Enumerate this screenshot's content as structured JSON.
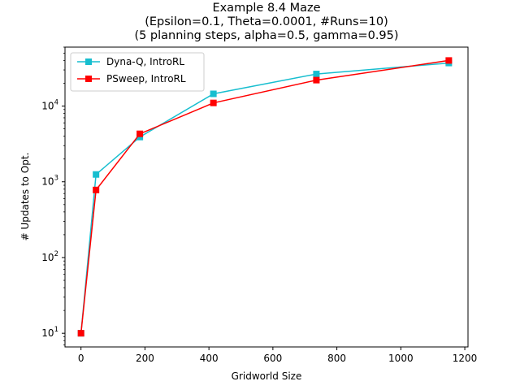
{
  "chart_data": {
    "type": "line",
    "title_lines": [
      "Example 8.4 Maze",
      "(Epsilon=0.1, Theta=0.0001, #Runs=10)",
      "(5 planning steps, alpha=0.5, gamma=0.95)"
    ],
    "xlabel": "Gridworld Size",
    "ylabel": "# Updates to Opt.",
    "x_scale": "linear",
    "y_scale": "log",
    "xlim": [
      -50,
      1210
    ],
    "ylim": [
      6.6,
      60000
    ],
    "x_ticks": [
      0,
      200,
      400,
      600,
      800,
      1000,
      1200
    ],
    "x_tick_labels": [
      "0",
      "200",
      "400",
      "600",
      "800",
      "1000",
      "1200"
    ],
    "y_ticks": [
      10,
      100,
      1000,
      10000
    ],
    "y_tick_labels": [
      {
        "base": "10",
        "exp": "1"
      },
      {
        "base": "10",
        "exp": "2"
      },
      {
        "base": "10",
        "exp": "3"
      },
      {
        "base": "10",
        "exp": "4"
      }
    ],
    "legend_position": "upper-left",
    "grid": false,
    "x": [
      0,
      47,
      184,
      414,
      736,
      1150
    ],
    "series": [
      {
        "name": "Dyna-Q, IntroRL",
        "color": "#17becf",
        "marker": "square",
        "values": [
          10,
          1250,
          3900,
          14500,
          26500,
          37000
        ]
      },
      {
        "name": "PSweep, IntroRL",
        "color": "#ff0000",
        "marker": "square",
        "values": [
          10,
          780,
          4300,
          11000,
          22000,
          40000
        ]
      }
    ]
  }
}
